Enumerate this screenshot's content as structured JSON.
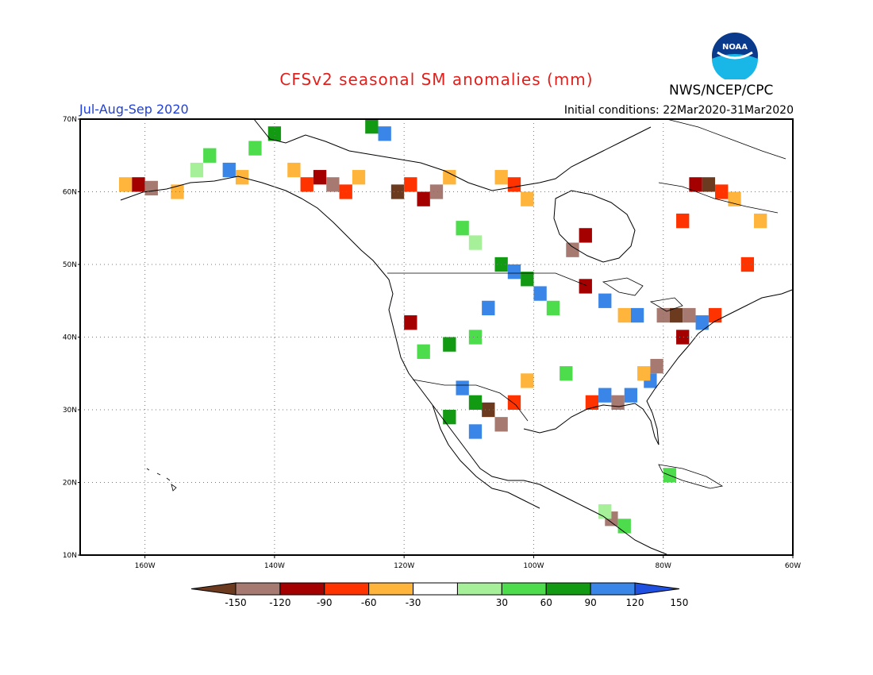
{
  "header": {
    "title": "CFSv2 seasonal SM anomalies (mm)",
    "season": "Jul-Aug-Sep 2020",
    "initial_conditions": "Initial conditions: 22Mar2020-31Mar2020",
    "agency": "NWS/NCEP/CPC",
    "logo_text": "NOAA"
  },
  "map": {
    "lon_range": [
      -170,
      -60
    ],
    "lat_range": [
      10,
      70
    ],
    "lon_ticks": [
      {
        "value": -160,
        "label": "160W"
      },
      {
        "value": -140,
        "label": "140W"
      },
      {
        "value": -120,
        "label": "120W"
      },
      {
        "value": -100,
        "label": "100W"
      },
      {
        "value": -80,
        "label": "80W"
      },
      {
        "value": -60,
        "label": "60W"
      }
    ],
    "lat_ticks": [
      {
        "value": 10,
        "label": "10N"
      },
      {
        "value": 20,
        "label": "20N"
      },
      {
        "value": 30,
        "label": "30N"
      },
      {
        "value": 40,
        "label": "40N"
      },
      {
        "value": 50,
        "label": "50N"
      },
      {
        "value": 60,
        "label": "60N"
      },
      {
        "value": 70,
        "label": "70N"
      }
    ],
    "grid_lines": "dotted",
    "anomaly_cells": [
      {
        "lon": -163,
        "lat": 61,
        "cls": "bn-30-60"
      },
      {
        "lon": -161,
        "lat": 61,
        "cls": "bn-90-120"
      },
      {
        "lon": -159,
        "lat": 60.5,
        "cls": "bn-120-150"
      },
      {
        "lon": -155,
        "lat": 60,
        "cls": "bn-30-60"
      },
      {
        "lon": -152,
        "lat": 63,
        "cls": "an-30-60"
      },
      {
        "lon": -150,
        "lat": 65,
        "cls": "an-60-90"
      },
      {
        "lon": -147,
        "lat": 63,
        "cls": "an-120-150"
      },
      {
        "lon": -145,
        "lat": 62,
        "cls": "bn-30-60"
      },
      {
        "lon": -143,
        "lat": 66,
        "cls": "an-60-90"
      },
      {
        "lon": -140,
        "lat": 68,
        "cls": "an-90-120"
      },
      {
        "lon": -137,
        "lat": 63,
        "cls": "bn-30-60"
      },
      {
        "lon": -135,
        "lat": 61,
        "cls": "bn-60-90"
      },
      {
        "lon": -133,
        "lat": 62,
        "cls": "bn-90-120"
      },
      {
        "lon": -131,
        "lat": 61,
        "cls": "bn-120-150"
      },
      {
        "lon": -129,
        "lat": 60,
        "cls": "bn-60-90"
      },
      {
        "lon": -127,
        "lat": 62,
        "cls": "bn-30-60"
      },
      {
        "lon": -125,
        "lat": 69,
        "cls": "an-90-120"
      },
      {
        "lon": -123,
        "lat": 68,
        "cls": "an-120-150"
      },
      {
        "lon": -121,
        "lat": 60,
        "cls": "bn-gt-150"
      },
      {
        "lon": -119,
        "lat": 61,
        "cls": "bn-60-90"
      },
      {
        "lon": -117,
        "lat": 59,
        "cls": "bn-90-120"
      },
      {
        "lon": -115,
        "lat": 60,
        "cls": "bn-120-150"
      },
      {
        "lon": -113,
        "lat": 62,
        "cls": "bn-30-60"
      },
      {
        "lon": -111,
        "lat": 55,
        "cls": "an-60-90"
      },
      {
        "lon": -109,
        "lat": 53,
        "cls": "an-30-60"
      },
      {
        "lon": -105,
        "lat": 62,
        "cls": "bn-30-60"
      },
      {
        "lon": -103,
        "lat": 61,
        "cls": "bn-60-90"
      },
      {
        "lon": -101,
        "lat": 59,
        "cls": "bn-30-60"
      },
      {
        "lon": -105,
        "lat": 50,
        "cls": "an-90-120"
      },
      {
        "lon": -103,
        "lat": 49,
        "cls": "an-120-150"
      },
      {
        "lon": -101,
        "lat": 48,
        "cls": "an-90-120"
      },
      {
        "lon": -99,
        "lat": 46,
        "cls": "an-120-150"
      },
      {
        "lon": -97,
        "lat": 44,
        "cls": "an-60-90"
      },
      {
        "lon": -107,
        "lat": 44,
        "cls": "an-120-150"
      },
      {
        "lon": -109,
        "lat": 40,
        "cls": "an-60-90"
      },
      {
        "lon": -113,
        "lat": 39,
        "cls": "an-90-120"
      },
      {
        "lon": -117,
        "lat": 38,
        "cls": "an-60-90"
      },
      {
        "lon": -119,
        "lat": 42,
        "cls": "bn-90-120"
      },
      {
        "lon": -111,
        "lat": 33,
        "cls": "an-120-150"
      },
      {
        "lon": -109,
        "lat": 31,
        "cls": "an-90-120"
      },
      {
        "lon": -107,
        "lat": 30,
        "cls": "bn-gt-150"
      },
      {
        "lon": -105,
        "lat": 28,
        "cls": "bn-120-150"
      },
      {
        "lon": -103,
        "lat": 31,
        "cls": "bn-60-90"
      },
      {
        "lon": -109,
        "lat": 27,
        "cls": "an-120-150"
      },
      {
        "lon": -113,
        "lat": 29,
        "cls": "an-90-120"
      },
      {
        "lon": -101,
        "lat": 34,
        "cls": "bn-30-60"
      },
      {
        "lon": -95,
        "lat": 35,
        "cls": "an-60-90"
      },
      {
        "lon": -91,
        "lat": 31,
        "cls": "bn-60-90"
      },
      {
        "lon": -89,
        "lat": 32,
        "cls": "an-120-150"
      },
      {
        "lon": -87,
        "lat": 31,
        "cls": "bn-120-150"
      },
      {
        "lon": -85,
        "lat": 32,
        "cls": "an-120-150"
      },
      {
        "lon": -82,
        "lat": 34,
        "cls": "an-120-150"
      },
      {
        "lon": -83,
        "lat": 35,
        "cls": "bn-30-60"
      },
      {
        "lon": -81,
        "lat": 36,
        "cls": "bn-120-150"
      },
      {
        "lon": -86,
        "lat": 43,
        "cls": "bn-30-60"
      },
      {
        "lon": -84,
        "lat": 43,
        "cls": "an-120-150"
      },
      {
        "lon": -80,
        "lat": 43,
        "cls": "bn-120-150"
      },
      {
        "lon": -78,
        "lat": 43,
        "cls": "bn-gt-150"
      },
      {
        "lon": -76,
        "lat": 43,
        "cls": "bn-120-150"
      },
      {
        "lon": -74,
        "lat": 42,
        "cls": "an-120-150"
      },
      {
        "lon": -72,
        "lat": 43,
        "cls": "bn-60-90"
      },
      {
        "lon": -77,
        "lat": 40,
        "cls": "bn-90-120"
      },
      {
        "lon": -92,
        "lat": 47,
        "cls": "bn-90-120"
      },
      {
        "lon": -89,
        "lat": 45,
        "cls": "an-120-150"
      },
      {
        "lon": -94,
        "lat": 52,
        "cls": "bn-120-150"
      },
      {
        "lon": -92,
        "lat": 54,
        "cls": "bn-90-120"
      },
      {
        "lon": -75,
        "lat": 61,
        "cls": "bn-90-120"
      },
      {
        "lon": -73,
        "lat": 61,
        "cls": "bn-gt-150"
      },
      {
        "lon": -71,
        "lat": 60,
        "cls": "bn-60-90"
      },
      {
        "lon": -69,
        "lat": 59,
        "cls": "bn-30-60"
      },
      {
        "lon": -77,
        "lat": 56,
        "cls": "bn-60-90"
      },
      {
        "lon": -65,
        "lat": 56,
        "cls": "bn-30-60"
      },
      {
        "lon": -67,
        "lat": 50,
        "cls": "bn-60-90"
      },
      {
        "lon": -88,
        "lat": 15,
        "cls": "bn-120-150"
      },
      {
        "lon": -86,
        "lat": 14,
        "cls": "an-60-90"
      },
      {
        "lon": -79,
        "lat": 21,
        "cls": "an-60-90"
      },
      {
        "lon": -89,
        "lat": 16,
        "cls": "an-30-60"
      }
    ]
  },
  "colorbar": {
    "labels": [
      "-150",
      "-120",
      "-90",
      "-60",
      "-30",
      "30",
      "60",
      "90",
      "120",
      "150"
    ],
    "colors": {
      "bn-gt-150": "#6b3a1f",
      "bn-120-150": "#a67a70",
      "bn-90-120": "#a40000",
      "bn-60-90": "#ff3300",
      "bn-30-60": "#ffb43c",
      "neutral": "#ffffff",
      "an-30-60": "#a6f09a",
      "an-60-90": "#4cdc4c",
      "an-90-120": "#139a13",
      "an-120-150": "#3a86e8",
      "an-gt-150": "#2050e0"
    }
  }
}
